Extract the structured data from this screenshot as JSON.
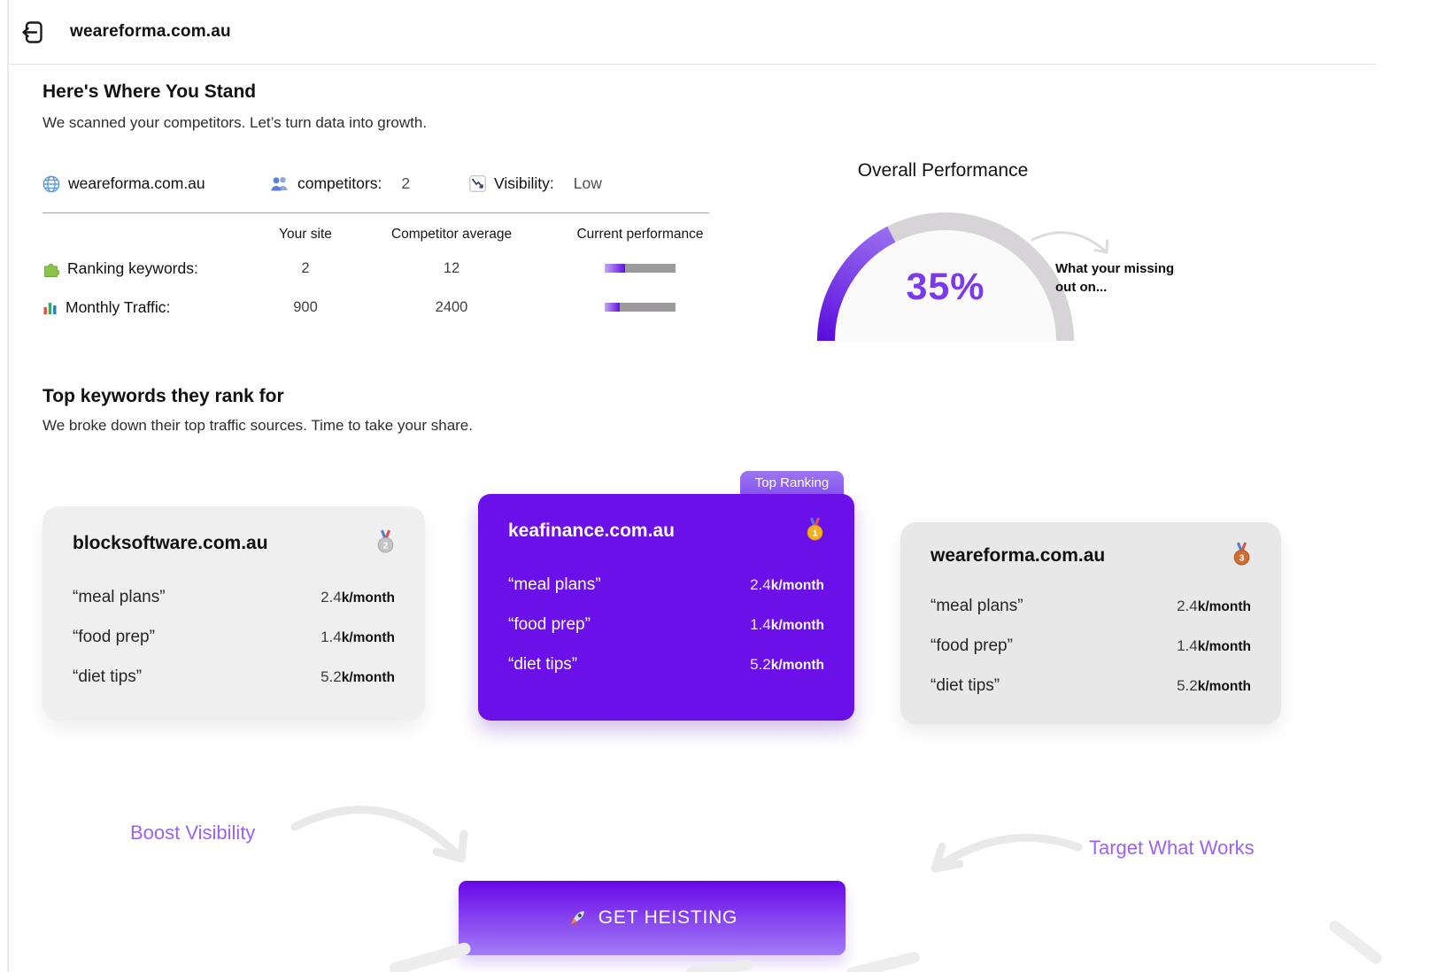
{
  "header": {
    "title": "weareforma.com.au",
    "back_icon": "exit-arrow"
  },
  "hero": {
    "title": "Here's Where You Stand",
    "subtitle": "We scanned your competitors. Let’s turn data into growth."
  },
  "stats": {
    "site": {
      "icon": "globe",
      "label": "weareforma.com.au"
    },
    "competitors": {
      "icon": "people",
      "label": "competitors:",
      "value": "2"
    },
    "visibility": {
      "icon": "chart-decreasing",
      "label": "Visibility:",
      "value": "Low"
    }
  },
  "comparison": {
    "columns": {
      "your_site": "Your site",
      "competitor_avg": "Competitor average",
      "performance": "Current performance"
    },
    "rows": [
      {
        "icon": "puzzle",
        "label": "Ranking keywords:",
        "your_site": "2",
        "competitor_avg": "12",
        "performance_pct": 29
      },
      {
        "icon": "bar-chart",
        "label": "Monthly Traffic:",
        "your_site": "900",
        "competitor_avg": "2400",
        "performance_pct": 21
      }
    ]
  },
  "gauge": {
    "title": "Overall Performance",
    "value_pct": 35,
    "value_label": "35%",
    "annotation_line1": "What your missing",
    "annotation_line2": "out on..."
  },
  "keywords_section": {
    "title": "Top keywords they rank for",
    "subtitle": "We broke down their top traffic sources. Time to take your share."
  },
  "cards": [
    {
      "domain": "blocksoftware.com.au",
      "rank": "2",
      "medal": "silver-medal",
      "keywords": [
        {
          "term": "“meal plans”",
          "value": "2.4",
          "unit": "k/month"
        },
        {
          "term": "“food prep”",
          "value": "1.4",
          "unit": "k/month"
        },
        {
          "term": "“diet tips”",
          "value": "5.2",
          "unit": "k/month"
        }
      ]
    },
    {
      "domain": "keafinance.com.au",
      "rank": "1",
      "medal": "gold-medal",
      "badge": "Top Ranking",
      "keywords": [
        {
          "term": "“meal plans”",
          "value": "2.4",
          "unit": "k/month"
        },
        {
          "term": "“food prep”",
          "value": "1.4",
          "unit": "k/month"
        },
        {
          "term": "“diet tips”",
          "value": "5.2",
          "unit": "k/month"
        }
      ]
    },
    {
      "domain": "weareforma.com.au",
      "rank": "3",
      "medal": "bronze-medal",
      "keywords": [
        {
          "term": "“meal plans”",
          "value": "2.4",
          "unit": "k/month"
        },
        {
          "term": "“food prep”",
          "value": "1.4",
          "unit": "k/month"
        },
        {
          "term": "“diet tips”",
          "value": "5.2",
          "unit": "k/month"
        }
      ]
    }
  ],
  "cta": {
    "left_label": "Boost Visibility",
    "right_label": "Target What Works",
    "button_label": "GET HEISTING",
    "button_icon": "rocket"
  },
  "colors": {
    "accent": "#6b10e8",
    "accent_light": "#9b63f2",
    "gauge_value": "#7c3aed",
    "bar_track": "#9c9a9c"
  }
}
